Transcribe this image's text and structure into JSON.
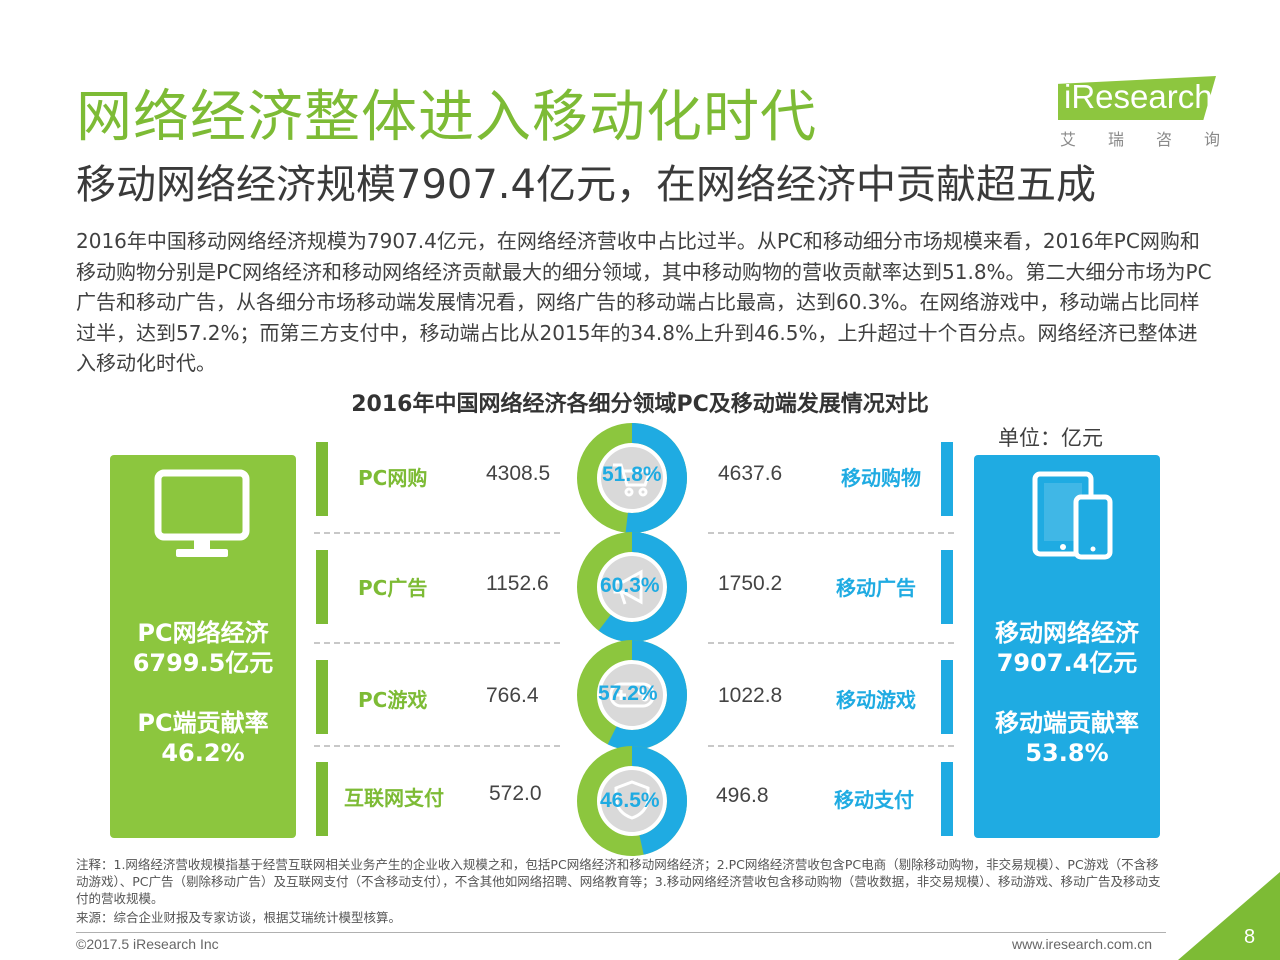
{
  "header": {
    "title": "网络经济整体进入移动化时代",
    "subtitle": "移动网络经济规模7907.4亿元，在网络经济中贡献超五成",
    "logo_text": "iResearch",
    "logo_cn": [
      "艾",
      "瑞",
      "咨",
      "询"
    ]
  },
  "paragraph": "2016年中国移动网络经济规模为7907.4亿元，在网络经济营收中占比过半。从PC和移动细分市场规模来看，2016年PC网购和移动购物分别是PC网络经济和移动网络经济贡献最大的细分领域，其中移动购物的营收贡献率达到51.8%。第二大细分市场为PC广告和移动广告，从各细分市场移动端发展情况看，网络广告的移动端占比最高，达到60.3%。在网络游戏中，移动端占比同样过半，达到57.2%；而第三方支付中，移动端占比从2015年的34.8%上升到46.5%，上升超过十个百分点。网络经济已整体进入移动化时代。",
  "chart": {
    "title": "2016年中国网络经济各细分领域PC及移动端发展情况对比",
    "unit": "单位：亿元",
    "pc_panel": {
      "line1": "PC网络经济",
      "line2": "6799.5亿元",
      "line3": "PC端贡献率",
      "line4": "46.2%"
    },
    "mobile_panel": {
      "line1": "移动网络经济",
      "line2": "7907.4亿元",
      "line3": "移动端贡献率",
      "line4": "53.8%"
    },
    "rows": [
      {
        "pc_label": "PC网购",
        "pc_value": "4308.5",
        "share_label": "51.8%",
        "share": 0.518,
        "mobile_value": "4637.6",
        "mobile_label": "移动购物",
        "icon": "cart-icon"
      },
      {
        "pc_label": "PC广告",
        "pc_value": "1152.6",
        "share_label": "60.3%",
        "share": 0.603,
        "mobile_value": "1750.2",
        "mobile_label": "移动广告",
        "icon": "megaphone-icon"
      },
      {
        "pc_label": "PC游戏",
        "pc_value": "766.4",
        "share_label": "57.2%",
        "share": 0.572,
        "mobile_value": "1022.8",
        "mobile_label": "移动游戏",
        "icon": "gamepad-icon"
      },
      {
        "pc_label": "互联网支付",
        "pc_value": "572.0",
        "share_label": "46.5%",
        "share": 0.465,
        "mobile_value": "496.8",
        "mobile_label": "移动支付",
        "icon": "shield-icon"
      }
    ],
    "colors": {
      "pc": "#8cc63e",
      "mobile": "#1fabe2",
      "inner": "#d9d9d9"
    }
  },
  "footer": {
    "note": "注释：1.网络经济营收规模指基于经营互联网相关业务产生的企业收入规模之和，包括PC网络经济和移动网络经济；2.PC网络经济营收包含PC电商（剔除移动购物，非交易规模）、PC游戏（不含移动游戏）、PC广告（剔除移动广告）及互联网支付（不含移动支付），不含其他如网络招聘、网络教育等；3.移动网络经济营收包含移动购物（营收数据，非交易规模）、移动游戏、移动广告及移动支付的营收规模。",
    "source": "来源：综合企业财报及专家访谈，根据艾瑞统计模型核算。",
    "copyright": "©2017.5 iResearch Inc",
    "website": "www.iresearch.com.cn",
    "page_number": "8"
  }
}
